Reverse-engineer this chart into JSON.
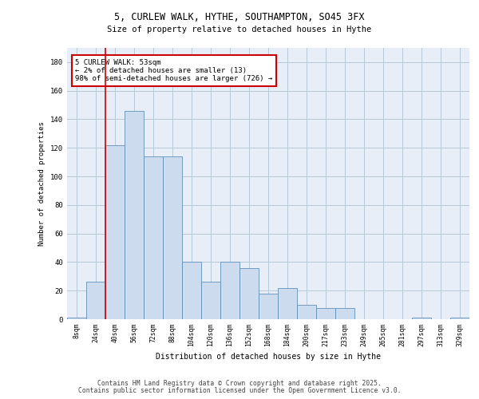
{
  "title_line1": "5, CURLEW WALK, HYTHE, SOUTHAMPTON, SO45 3FX",
  "title_line2": "Size of property relative to detached houses in Hythe",
  "xlabel": "Distribution of detached houses by size in Hythe",
  "ylabel": "Number of detached properties",
  "categories": [
    "8sqm",
    "24sqm",
    "40sqm",
    "56sqm",
    "72sqm",
    "88sqm",
    "104sqm",
    "120sqm",
    "136sqm",
    "152sqm",
    "168sqm",
    "184sqm",
    "200sqm",
    "217sqm",
    "233sqm",
    "249sqm",
    "265sqm",
    "281sqm",
    "297sqm",
    "313sqm",
    "329sqm"
  ],
  "values": [
    1,
    26,
    122,
    146,
    114,
    114,
    40,
    26,
    40,
    36,
    18,
    22,
    10,
    8,
    8,
    0,
    0,
    0,
    1,
    0,
    1
  ],
  "bar_color": "#ccdcee",
  "bar_edge_color": "#6090b8",
  "red_line_x": 1.5,
  "annotation_text": "5 CURLEW WALK: 53sqm\n← 2% of detached houses are smaller (13)\n98% of semi-detached houses are larger (726) →",
  "annotation_box_color": "#ffffff",
  "annotation_box_edge": "#cc0000",
  "ylim": [
    0,
    190
  ],
  "yticks": [
    0,
    20,
    40,
    60,
    80,
    100,
    120,
    140,
    160,
    180
  ],
  "footer_line1": "Contains HM Land Registry data © Crown copyright and database right 2025.",
  "footer_line2": "Contains public sector information licensed under the Open Government Licence v3.0.",
  "bg_color": "#e8eef8",
  "grid_color": "#b8c8d8",
  "fig_bg": "#ffffff"
}
